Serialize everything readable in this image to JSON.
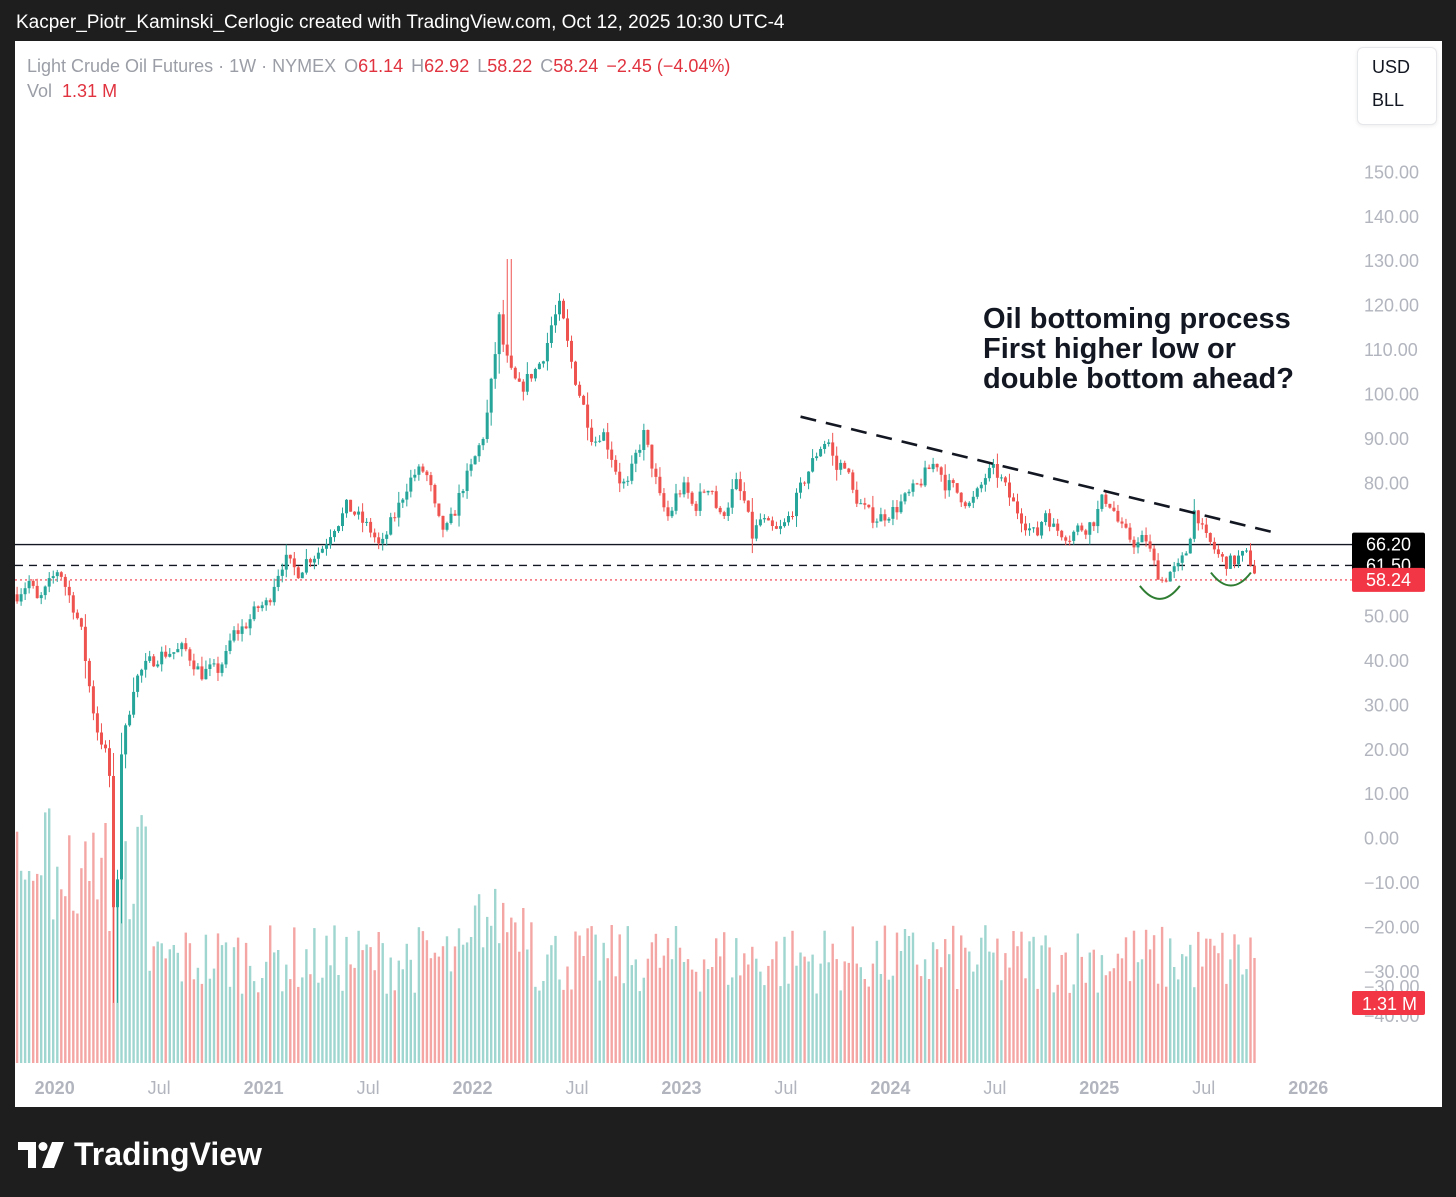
{
  "header": {
    "text": "Kacper_Piotr_Kaminski_Cerlogic created with TradingView.com, Oct 12, 2025 10:30 UTC-4"
  },
  "legend": {
    "symbol": "Light Crude Oil Futures · 1W · NYMEX",
    "o_label": "O",
    "o_value": "61.14",
    "h_label": "H",
    "h_value": "62.92",
    "l_label": "L",
    "l_value": "58.22",
    "c_label": "C",
    "c_value": "58.24",
    "change": "−2.45 (−4.04%)",
    "vol_label": "Vol",
    "vol_value": "1.31 M"
  },
  "currency": {
    "line1": "USD",
    "line2": "BLL"
  },
  "annotation": {
    "line1": "Oil bottoming process",
    "line2": "First higher low or",
    "line3": "double bottom ahead?"
  },
  "footer": {
    "brand": "TradingView"
  },
  "colors": {
    "up": "#26a69a",
    "down": "#ef5350",
    "text": "#131722",
    "axis": "#b2b5be",
    "price_tag": "#f23645"
  },
  "chart_data": {
    "type": "candlestick",
    "timeframe": "1W",
    "y_ticks": [
      150,
      140,
      130,
      120,
      110,
      100,
      90,
      80,
      70,
      60,
      50,
      40,
      30,
      20,
      10,
      0,
      -10,
      -20,
      -30,
      -40
    ],
    "y_tick_labels": [
      "150.00",
      "140.00",
      "130.00",
      "120.00",
      "110.00",
      "100.00",
      "90.00",
      "80.00",
      "",
      "",
      "50.00",
      "40.00",
      "30.00",
      "20.00",
      "10.00",
      "0.00",
      "−10.00",
      "−20.00",
      "−30.00",
      "−40.00"
    ],
    "ylim": [
      -44,
      160
    ],
    "x_ticks": [
      {
        "t": 2020.0,
        "label": "2020",
        "bold": true
      },
      {
        "t": 2020.5,
        "label": "Jul",
        "bold": false
      },
      {
        "t": 2021.0,
        "label": "2021",
        "bold": true
      },
      {
        "t": 2021.5,
        "label": "Jul",
        "bold": false
      },
      {
        "t": 2022.0,
        "label": "2022",
        "bold": true
      },
      {
        "t": 2022.5,
        "label": "Jul",
        "bold": false
      },
      {
        "t": 2023.0,
        "label": "2023",
        "bold": true
      },
      {
        "t": 2023.5,
        "label": "Jul",
        "bold": false
      },
      {
        "t": 2024.0,
        "label": "2024",
        "bold": true
      },
      {
        "t": 2024.5,
        "label": "Jul",
        "bold": false
      },
      {
        "t": 2025.0,
        "label": "2025",
        "bold": true
      },
      {
        "t": 2025.5,
        "label": "Jul",
        "bold": false
      },
      {
        "t": 2026.0,
        "label": "2026",
        "bold": true
      }
    ],
    "xlim": [
      2019.81,
      2026.2
    ],
    "close_path": [
      [
        2019.82,
        55
      ],
      [
        2019.88,
        58
      ],
      [
        2019.92,
        53
      ],
      [
        2019.97,
        57
      ],
      [
        2020.02,
        61
      ],
      [
        2020.05,
        57
      ],
      [
        2020.1,
        51
      ],
      [
        2020.13,
        46
      ],
      [
        2020.17,
        33
      ],
      [
        2020.2,
        25
      ],
      [
        2020.24,
        20
      ],
      [
        2020.27,
        12
      ],
      [
        2020.29,
        -38
      ],
      [
        2020.31,
        17
      ],
      [
        2020.35,
        27
      ],
      [
        2020.38,
        35
      ],
      [
        2020.42,
        38
      ],
      [
        2020.46,
        40
      ],
      [
        2020.5,
        41
      ],
      [
        2020.54,
        42
      ],
      [
        2020.58,
        42
      ],
      [
        2020.62,
        43
      ],
      [
        2020.66,
        40
      ],
      [
        2020.7,
        37
      ],
      [
        2020.74,
        38
      ],
      [
        2020.78,
        38
      ],
      [
        2020.82,
        41
      ],
      [
        2020.85,
        46
      ],
      [
        2020.89,
        47
      ],
      [
        2020.93,
        49
      ],
      [
        2020.97,
        52
      ],
      [
        2021.02,
        53
      ],
      [
        2021.06,
        59
      ],
      [
        2021.1,
        63
      ],
      [
        2021.14,
        61
      ],
      [
        2021.17,
        60
      ],
      [
        2021.21,
        63
      ],
      [
        2021.25,
        64
      ],
      [
        2021.29,
        66
      ],
      [
        2021.33,
        70
      ],
      [
        2021.37,
        72
      ],
      [
        2021.4,
        75
      ],
      [
        2021.44,
        73
      ],
      [
        2021.48,
        71
      ],
      [
        2021.52,
        69
      ],
      [
        2021.56,
        65
      ],
      [
        2021.6,
        70
      ],
      [
        2021.64,
        74
      ],
      [
        2021.68,
        79
      ],
      [
        2021.72,
        82
      ],
      [
        2021.76,
        83
      ],
      [
        2021.79,
        81
      ],
      [
        2021.83,
        72
      ],
      [
        2021.87,
        69
      ],
      [
        2021.91,
        73
      ],
      [
        2021.95,
        79
      ],
      [
        2021.99,
        83
      ],
      [
        2022.03,
        88
      ],
      [
        2022.06,
        92
      ],
      [
        2022.1,
        106
      ],
      [
        2022.13,
        118
      ],
      [
        2022.15,
        110
      ],
      [
        2022.19,
        104
      ],
      [
        2022.23,
        101
      ],
      [
        2022.27,
        104
      ],
      [
        2022.31,
        106
      ],
      [
        2022.35,
        110
      ],
      [
        2022.38,
        116
      ],
      [
        2022.42,
        120
      ],
      [
        2022.46,
        110
      ],
      [
        2022.5,
        102
      ],
      [
        2022.54,
        96
      ],
      [
        2022.58,
        89
      ],
      [
        2022.62,
        92
      ],
      [
        2022.66,
        87
      ],
      [
        2022.7,
        81
      ],
      [
        2022.74,
        79
      ],
      [
        2022.78,
        86
      ],
      [
        2022.82,
        91
      ],
      [
        2022.86,
        84
      ],
      [
        2022.9,
        76
      ],
      [
        2022.94,
        72
      ],
      [
        2022.98,
        78
      ],
      [
        2023.02,
        79
      ],
      [
        2023.06,
        74
      ],
      [
        2023.1,
        78
      ],
      [
        2023.14,
        80
      ],
      [
        2023.18,
        72
      ],
      [
        2023.22,
        75
      ],
      [
        2023.26,
        80
      ],
      [
        2023.3,
        76
      ],
      [
        2023.34,
        68
      ],
      [
        2023.38,
        72
      ],
      [
        2023.42,
        70
      ],
      [
        2023.46,
        69
      ],
      [
        2023.5,
        71
      ],
      [
        2023.54,
        75
      ],
      [
        2023.58,
        80
      ],
      [
        2023.62,
        84
      ],
      [
        2023.66,
        88
      ],
      [
        2023.7,
        90
      ],
      [
        2023.74,
        83
      ],
      [
        2023.78,
        85
      ],
      [
        2023.82,
        78
      ],
      [
        2023.86,
        75
      ],
      [
        2023.9,
        73
      ],
      [
        2023.94,
        72
      ],
      [
        2023.98,
        73
      ],
      [
        2024.02,
        74
      ],
      [
        2024.06,
        76
      ],
      [
        2024.1,
        78
      ],
      [
        2024.14,
        80
      ],
      [
        2024.18,
        83
      ],
      [
        2024.22,
        85
      ],
      [
        2024.26,
        80
      ],
      [
        2024.3,
        79
      ],
      [
        2024.34,
        77
      ],
      [
        2024.38,
        75
      ],
      [
        2024.42,
        78
      ],
      [
        2024.46,
        82
      ],
      [
        2024.5,
        83
      ],
      [
        2024.54,
        80
      ],
      [
        2024.58,
        76
      ],
      [
        2024.62,
        73
      ],
      [
        2024.66,
        70
      ],
      [
        2024.7,
        68
      ],
      [
        2024.74,
        74
      ],
      [
        2024.78,
        70
      ],
      [
        2024.82,
        69
      ],
      [
        2024.86,
        68
      ],
      [
        2024.9,
        70
      ],
      [
        2024.94,
        70
      ],
      [
        2024.98,
        72
      ],
      [
        2025.02,
        77
      ],
      [
        2025.06,
        75
      ],
      [
        2025.1,
        70
      ],
      [
        2025.14,
        68
      ],
      [
        2025.18,
        66
      ],
      [
        2025.22,
        68
      ],
      [
        2025.26,
        62
      ],
      [
        2025.3,
        58
      ],
      [
        2025.34,
        60
      ],
      [
        2025.38,
        61
      ],
      [
        2025.42,
        65
      ],
      [
        2025.46,
        75
      ],
      [
        2025.5,
        68
      ],
      [
        2025.54,
        66
      ],
      [
        2025.58,
        63
      ],
      [
        2025.62,
        62
      ],
      [
        2025.66,
        63
      ],
      [
        2025.7,
        64
      ],
      [
        2025.73,
        62
      ],
      [
        2025.76,
        58.24
      ]
    ],
    "trendline": {
      "from": [
        2023.57,
        95
      ],
      "to": [
        2025.83,
        69
      ]
    },
    "levels": [
      {
        "value": 66.2,
        "label": "66.20",
        "style": "solid"
      },
      {
        "value": 61.5,
        "label": "61.50",
        "style": "dashed"
      },
      {
        "value": 58.24,
        "label": "58.24",
        "style": "dotted-red"
      }
    ],
    "lows_marked": [
      {
        "t": 2025.29,
        "v": 56
      },
      {
        "t": 2025.63,
        "v": 59
      }
    ],
    "volume_label": "1.31 M",
    "volume_axis_label": "−30.00"
  }
}
